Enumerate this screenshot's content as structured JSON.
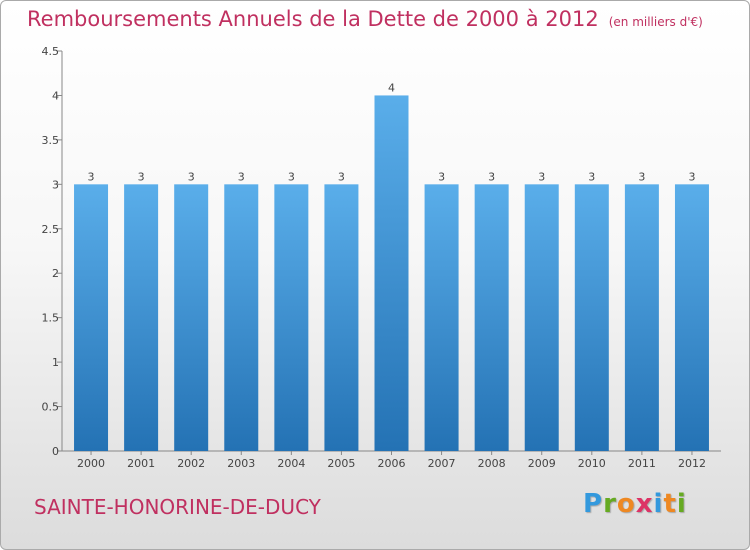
{
  "title": "Remboursements Annuels de la Dette de 2000 à 2012",
  "unit": "(en milliers d'€)",
  "commune": "SAINTE-HONORINE-DE-DUCY",
  "logo": "Proxiti",
  "colors": {
    "bar": "#3d8fd6",
    "title": "#c03060"
  },
  "chart_data": {
    "type": "bar",
    "categories": [
      "2000",
      "2001",
      "2002",
      "2003",
      "2004",
      "2005",
      "2006",
      "2007",
      "2008",
      "2009",
      "2010",
      "2011",
      "2012"
    ],
    "values": [
      3,
      3,
      3,
      3,
      3,
      3,
      4,
      3,
      3,
      3,
      3,
      3,
      3
    ],
    "data_labels": [
      "3",
      "3",
      "3",
      "3",
      "3",
      "3",
      "4",
      "3",
      "3",
      "3",
      "3",
      "3",
      "3"
    ],
    "yticks": [
      0,
      0.5,
      1,
      1.5,
      2,
      2.5,
      3,
      3.5,
      4,
      4.5
    ],
    "ytick_labels": [
      "0",
      "0.5",
      "1",
      "1.5",
      "2",
      "2.5",
      "3",
      "3.5",
      "4",
      "4.5"
    ],
    "ylim": [
      0,
      4.5
    ],
    "grid": false,
    "title": "Remboursements Annuels de la Dette de 2000 à 2012",
    "ylabel": "",
    "xlabel": ""
  }
}
